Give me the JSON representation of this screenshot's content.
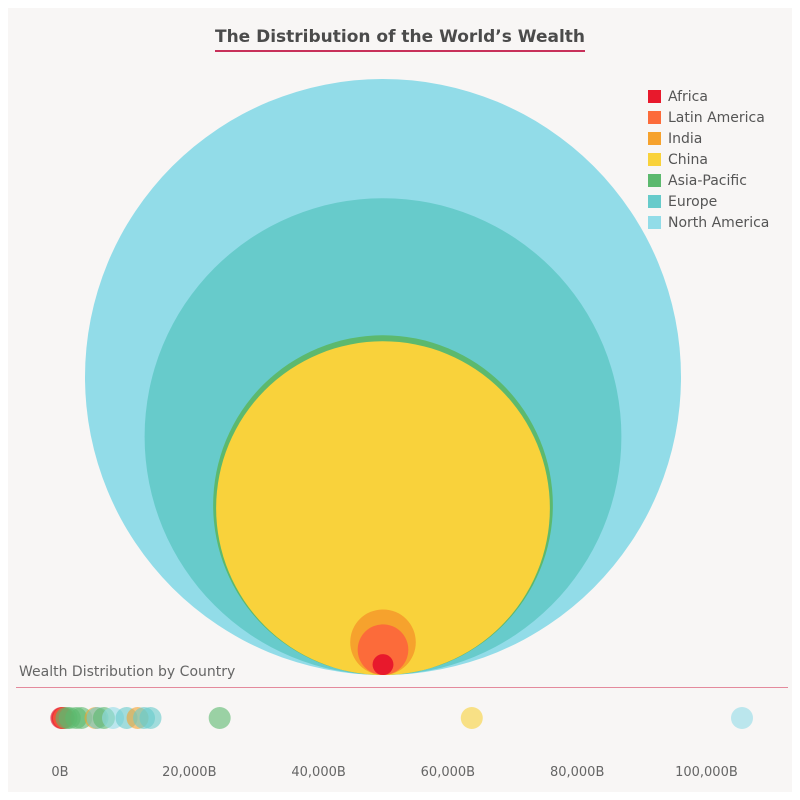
{
  "chart_data": [
    {
      "type": "bubble",
      "title": "The Distribution of the World’s Wealth",
      "legend_position": "top-right",
      "series": [
        {
          "name": "North America",
          "color": "#92dce8",
          "relative_size": 1.0
        },
        {
          "name": "Europe",
          "color": "#67cbcb",
          "relative_size": 0.8
        },
        {
          "name": "Asia-Pacific",
          "color": "#5cb96e",
          "relative_size": 0.57
        },
        {
          "name": "China",
          "color": "#f9d23b",
          "relative_size": 0.56
        },
        {
          "name": "India",
          "color": "#f6a22d",
          "relative_size": 0.11
        },
        {
          "name": "Latin America",
          "color": "#fc6b3a",
          "relative_size": 0.085
        },
        {
          "name": "Africa",
          "color": "#e8192c",
          "relative_size": 0.035
        }
      ]
    },
    {
      "type": "scatter",
      "title": "Wealth Distribution by Country",
      "x_unit": "B",
      "xlim": [
        0,
        106000
      ],
      "x_ticks": [
        0,
        20000,
        40000,
        60000,
        80000,
        100000
      ],
      "x_tick_labels": [
        "0B",
        "20,000B",
        "40,000B",
        "60,000B",
        "80,000B",
        "100,000B"
      ],
      "points": [
        {
          "region": "Africa",
          "x": 200
        },
        {
          "region": "Africa",
          "x": 350
        },
        {
          "region": "Africa",
          "x": 500
        },
        {
          "region": "Latin America",
          "x": 600
        },
        {
          "region": "Asia-Pacific",
          "x": 1000
        },
        {
          "region": "Asia-Pacific",
          "x": 1500
        },
        {
          "region": "Asia-Pacific",
          "x": 2500
        },
        {
          "region": "Asia-Pacific",
          "x": 3300
        },
        {
          "region": "India",
          "x": 5500
        },
        {
          "region": "Europe",
          "x": 5800
        },
        {
          "region": "Asia-Pacific",
          "x": 6800
        },
        {
          "region": "North America",
          "x": 8200
        },
        {
          "region": "Europe",
          "x": 10300
        },
        {
          "region": "India",
          "x": 12000
        },
        {
          "region": "Europe",
          "x": 13000
        },
        {
          "region": "Europe",
          "x": 14000
        },
        {
          "region": "Asia-Pacific",
          "x": 24700
        },
        {
          "region": "China",
          "x": 63700
        },
        {
          "region": "North America",
          "x": 105500
        }
      ]
    }
  ]
}
